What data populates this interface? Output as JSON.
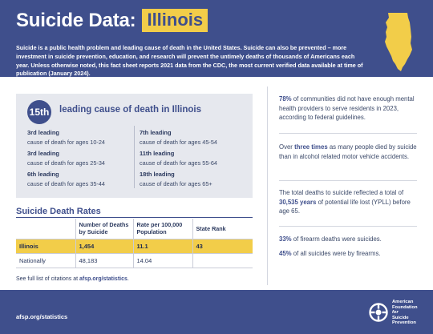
{
  "header": {
    "title_main": "Suicide Data:",
    "title_state": "Illinois",
    "intro": "Suicide is a public health problem and leading cause of death in the United States. Suicide can also be prevented – more investment in suicide prevention, education, and research will prevent the untimely deaths of thousands of Americans each year. Unless otherwise noted, this fact sheet reports 2021 data from the CDC, the most current verified data available at time of publication (January 2024)."
  },
  "ranking": {
    "rank": "15th",
    "rank_text": "leading cause of death in Illinois",
    "items": [
      {
        "label": "3rd leading",
        "desc": "cause of death for ages 10-24"
      },
      {
        "label": "3rd leading",
        "desc": "cause of death for ages 25-34"
      },
      {
        "label": "6th leading",
        "desc": "cause of death for ages 35-44"
      },
      {
        "label": "7th leading",
        "desc": "cause of death for ages 45-54"
      },
      {
        "label": "11th leading",
        "desc": "cause of death for ages 55-64"
      },
      {
        "label": "18th leading",
        "desc": "cause of death for ages 65+"
      }
    ]
  },
  "rates": {
    "title": "Suicide Death Rates",
    "columns": [
      "",
      "Number of Deaths by Suicide",
      "Rate per 100,000 Population",
      "State Rank"
    ],
    "rows": [
      [
        "Illinois",
        "1,454",
        "11.1",
        "43"
      ],
      [
        "Nationally",
        "48,183",
        "14.04",
        ""
      ]
    ]
  },
  "citation": {
    "prefix": "See full list of citations at ",
    "link": "afsp.org/statistics",
    "suffix": "."
  },
  "facts": {
    "f1_bold": "78%",
    "f1_text": " of communities did not have enough mental health providers to serve residents in 2023, according to federal guidelines.",
    "f2_pre": "Over ",
    "f2_bold": "three times",
    "f2_text": " as many people died by suicide than in alcohol related motor vehicle accidents.",
    "f3_pre": "The total deaths to suicide reflected a total of ",
    "f3_bold": "30,535 years",
    "f3_text": " of potential life lost (YPLL) before age 65.",
    "f4_bold": "33%",
    "f4_text": " of firearm deaths were suicides.",
    "f5_bold": "45%",
    "f5_text": " of all suicides were by firearms."
  },
  "footer": {
    "url": "afsp.org/statistics",
    "logo_lines": [
      "American",
      "Foundation",
      "for",
      "Suicide",
      "Prevention"
    ]
  },
  "colors": {
    "primary": "#3f4f8c",
    "accent": "#f2cd49",
    "panel": "#e6e8ee"
  },
  "icons": {
    "state_map": "illinois-map-icon",
    "logo": "afsp-logo-icon"
  }
}
